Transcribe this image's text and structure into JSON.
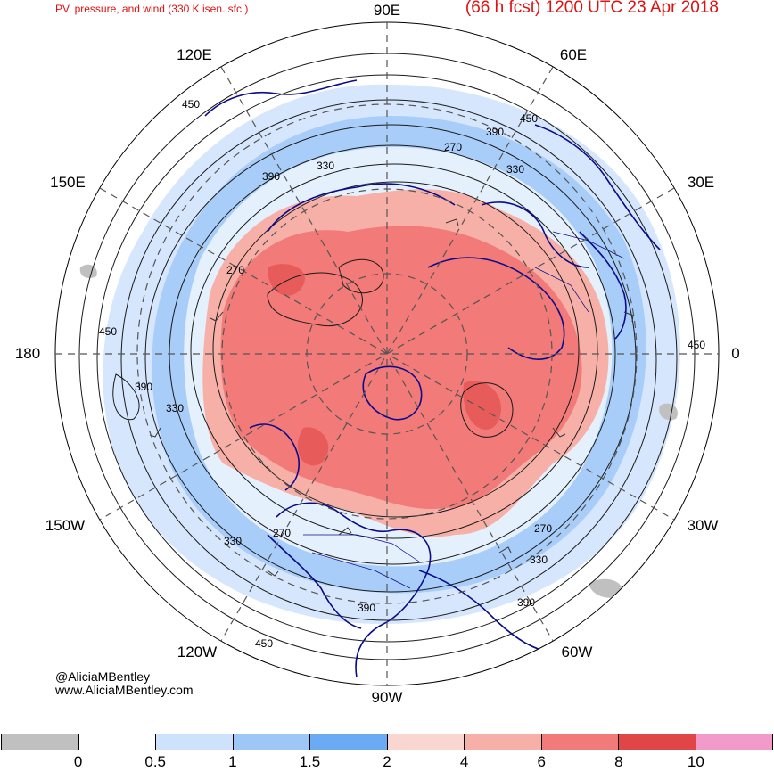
{
  "header": {
    "subtitle": "PV, pressure, and wind (330 K isen. sfc.)",
    "title": "(66 h fcst) 1200 UTC 23 Apr 2018",
    "title_color": "#e01010"
  },
  "longitude_labels": [
    {
      "id": "90e",
      "text": "90E"
    },
    {
      "id": "60e",
      "text": "60E"
    },
    {
      "id": "30e",
      "text": "30E"
    },
    {
      "id": "0",
      "text": "0"
    },
    {
      "id": "30w",
      "text": "30W"
    },
    {
      "id": "60w",
      "text": "60W"
    },
    {
      "id": "90w",
      "text": "90W"
    },
    {
      "id": "120w",
      "text": "120W"
    },
    {
      "id": "150w",
      "text": "150W"
    },
    {
      "id": "180",
      "text": "180"
    },
    {
      "id": "150e",
      "text": "150E"
    },
    {
      "id": "120e",
      "text": "120E"
    }
  ],
  "contour_labels": [
    "450",
    "390",
    "270",
    "330"
  ],
  "credits": {
    "handle": "@AliciaMBentley",
    "website": "www.AliciaMBentley.com"
  },
  "colorbar": {
    "colors": [
      "#c0c0c0",
      "#ffffff",
      "#cfe2fb",
      "#9ec7f7",
      "#6aabf3",
      "#fad6d0",
      "#f7b0a8",
      "#f27a78",
      "#e04646",
      "#f29bcb"
    ],
    "ticks": [
      "0",
      "0.5",
      "1",
      "1.5",
      "2",
      "4",
      "6",
      "8",
      "10"
    ]
  },
  "map_colors": {
    "coastline": "#0b0b8a",
    "contour": "#1a1a1a",
    "pv_high": "#f27a78",
    "pv_mid": "#f7b0a8",
    "pv_low_blue": "#9ec7f7",
    "pv_light_blue": "#cfe2fb"
  }
}
